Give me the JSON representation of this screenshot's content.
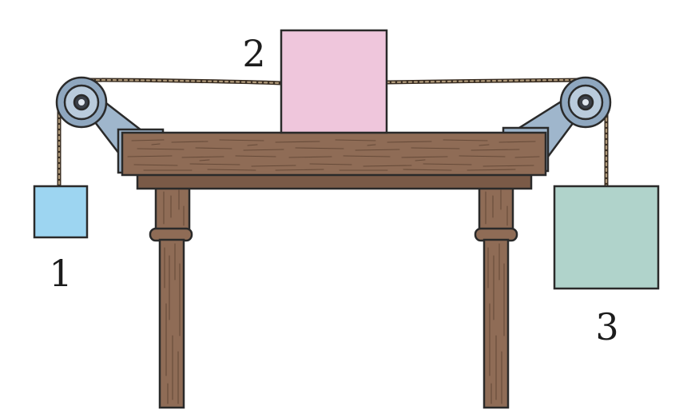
{
  "labels": {
    "block1": "1",
    "block2": "2",
    "block3": "3"
  },
  "colors": {
    "block1": "#9dd5f1",
    "block2": "#efc6dc",
    "block3": "#b0d3cb",
    "wood": "#8f6c56",
    "wood_dark": "#7a5a47",
    "pulley": "#8fa7bf",
    "bracket": "#9fb6cc",
    "rope": "#3a2e22"
  }
}
